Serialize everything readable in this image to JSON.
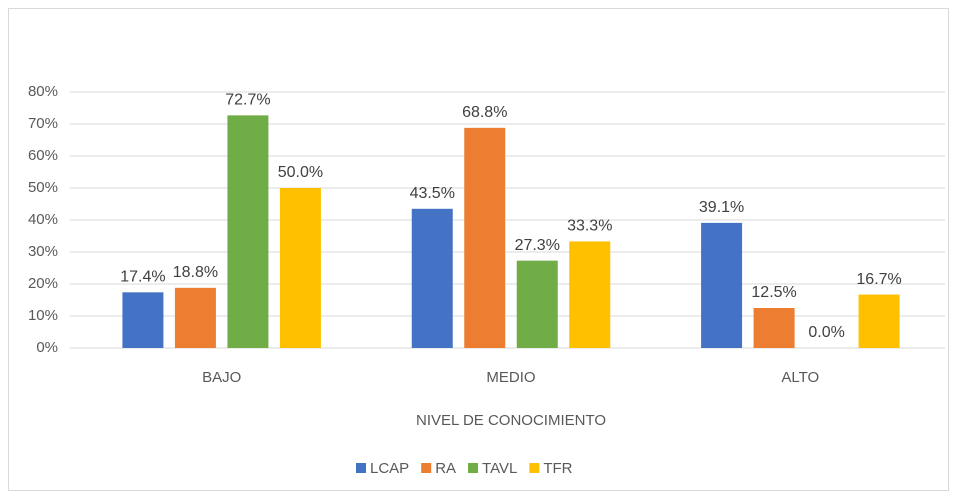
{
  "chart_data": {
    "type": "bar",
    "x_label": "NIVEL DE CONOCIMIENTO",
    "categories": [
      "BAJO",
      "MEDIO",
      "ALTO"
    ],
    "series": [
      {
        "name": "LCAP",
        "color": "#4472c4",
        "values": [
          17.4,
          43.5,
          39.1
        ],
        "value_labels": [
          "17.4%",
          "43.5%",
          "39.1%"
        ]
      },
      {
        "name": "RA",
        "color": "#ed7d31",
        "values": [
          18.8,
          68.8,
          12.5
        ],
        "value_labels": [
          "18.8%",
          "68.8%",
          "12.5%"
        ]
      },
      {
        "name": "TAVL",
        "color": "#70ad47",
        "values": [
          72.7,
          27.3,
          0.0
        ],
        "value_labels": [
          "72.7%",
          "27.3%",
          "0.0%"
        ]
      },
      {
        "name": "TFR",
        "color": "#ffc000",
        "values": [
          50.0,
          33.3,
          16.7
        ],
        "value_labels": [
          "50.0%",
          "33.3%",
          "16.7%"
        ]
      }
    ],
    "ylim": [
      0,
      80
    ],
    "yticks": [
      {
        "value": 0,
        "label": "0%"
      },
      {
        "value": 10,
        "label": "10%"
      },
      {
        "value": 20,
        "label": "20%"
      },
      {
        "value": 30,
        "label": "30%"
      },
      {
        "value": 40,
        "label": "40%"
      },
      {
        "value": 50,
        "label": "50%"
      },
      {
        "value": 60,
        "label": "60%"
      },
      {
        "value": 70,
        "label": "70%"
      },
      {
        "value": 80,
        "label": "80%"
      }
    ],
    "grid": true,
    "legend": "bottom"
  }
}
